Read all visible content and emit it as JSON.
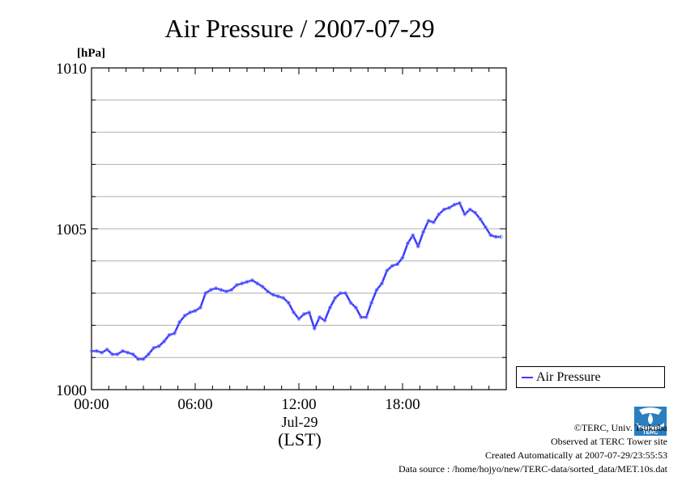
{
  "chart_data": {
    "type": "line",
    "title": "Air Pressure / 2007-07-29",
    "ylabel": "[hPa]",
    "xlabel": "(LST)",
    "date_label": "Jul-29",
    "ylim": [
      1000,
      1010
    ],
    "xlim": [
      0,
      24
    ],
    "y_ticks": [
      "1000",
      "1005",
      "1010"
    ],
    "x_ticks": [
      "00:00",
      "06:00",
      "12:00",
      "18:00"
    ],
    "grid": true,
    "legend_position": "right",
    "series": [
      {
        "name": "Air Pressure",
        "color": "#3b3bff",
        "x": [
          0,
          0.3,
          0.6,
          0.9,
          1.2,
          1.5,
          1.8,
          2.1,
          2.4,
          2.7,
          3.0,
          3.3,
          3.6,
          3.9,
          4.2,
          4.5,
          4.8,
          5.1,
          5.4,
          5.7,
          6.0,
          6.3,
          6.6,
          6.9,
          7.2,
          7.5,
          7.8,
          8.1,
          8.4,
          8.7,
          9.0,
          9.3,
          9.6,
          9.9,
          10.2,
          10.5,
          10.8,
          11.1,
          11.4,
          11.7,
          12.0,
          12.3,
          12.6,
          12.9,
          13.2,
          13.5,
          13.8,
          14.1,
          14.4,
          14.7,
          15.0,
          15.3,
          15.6,
          15.9,
          16.2,
          16.5,
          16.8,
          17.1,
          17.4,
          17.7,
          18.0,
          18.3,
          18.6,
          18.9,
          19.2,
          19.5,
          19.8,
          20.1,
          20.4,
          20.7,
          21.0,
          21.3,
          21.6,
          21.9,
          22.2,
          22.5,
          22.8,
          23.1,
          23.4,
          23.7
        ],
        "values": [
          1001.2,
          1001.2,
          1001.15,
          1001.25,
          1001.1,
          1001.1,
          1001.2,
          1001.15,
          1001.1,
          1000.95,
          1000.95,
          1001.1,
          1001.3,
          1001.35,
          1001.5,
          1001.7,
          1001.75,
          1002.1,
          1002.3,
          1002.4,
          1002.45,
          1002.55,
          1003.0,
          1003.1,
          1003.15,
          1003.1,
          1003.05,
          1003.1,
          1003.25,
          1003.3,
          1003.35,
          1003.4,
          1003.3,
          1003.2,
          1003.05,
          1002.95,
          1002.9,
          1002.85,
          1002.7,
          1002.4,
          1002.2,
          1002.35,
          1002.4,
          1001.9,
          1002.25,
          1002.15,
          1002.55,
          1002.85,
          1003.0,
          1003.0,
          1002.7,
          1002.55,
          1002.25,
          1002.25,
          1002.7,
          1003.1,
          1003.3,
          1003.7,
          1003.85,
          1003.9,
          1004.1,
          1004.55,
          1004.8,
          1004.45,
          1004.9,
          1005.25,
          1005.2,
          1005.45,
          1005.6,
          1005.65,
          1005.75,
          1005.8,
          1005.45,
          1005.6,
          1005.5,
          1005.3,
          1005.05,
          1004.8,
          1004.75,
          1004.75
        ]
      }
    ]
  },
  "legend": {
    "label": "Air Pressure"
  },
  "footer": {
    "copyright": "©TERC, Univ. Tsukuba",
    "observed": "Observed at TERC Tower site",
    "created": "Created Automatically at 2007-07-29/23:55:53",
    "source": "Data source : /home/hojyo/new/TERC-data/sorted_data/MET.10s.dat"
  },
  "logo": {
    "text": "TERC"
  }
}
